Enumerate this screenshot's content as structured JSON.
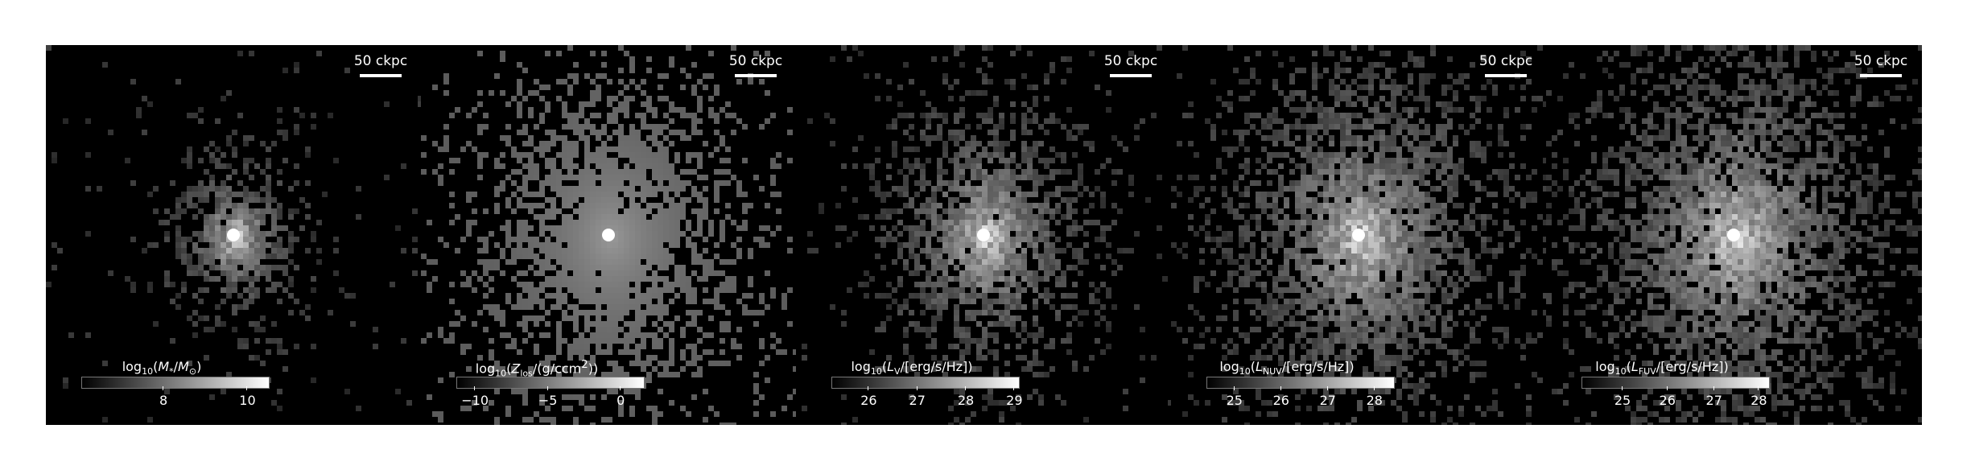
{
  "panels": [
    {
      "scalebar": "50 ckpc",
      "colorbar_label": "log10(M*/M⊙)",
      "ticks": [
        {
          "label": "8",
          "frac": 0.44
        },
        {
          "label": "10",
          "frac": 0.89
        }
      ]
    },
    {
      "scalebar": "50 ckpc",
      "colorbar_label": "log10(Zlos/(g/ccm²))",
      "ticks": [
        {
          "label": "−10",
          "frac": 0.1
        },
        {
          "label": "−5",
          "frac": 0.49
        },
        {
          "label": "0",
          "frac": 0.88
        }
      ]
    },
    {
      "scalebar": "50 ckpc",
      "colorbar_label": "log10(LV/[erg/s/Hz])",
      "ticks": [
        {
          "label": "26",
          "frac": 0.2
        },
        {
          "label": "27",
          "frac": 0.46
        },
        {
          "label": "28",
          "frac": 0.72
        },
        {
          "label": "29",
          "frac": 0.98
        }
      ]
    },
    {
      "scalebar": "50 ckpc",
      "colorbar_label": "log10(LNUV/[erg/s/Hz])",
      "ticks": [
        {
          "label": "25",
          "frac": 0.15
        },
        {
          "label": "26",
          "frac": 0.4
        },
        {
          "label": "27",
          "frac": 0.65
        },
        {
          "label": "28",
          "frac": 0.9
        }
      ]
    },
    {
      "scalebar": "50 ckpc",
      "colorbar_label": "log10(LFUV/[erg/s/Hz])",
      "ticks": [
        {
          "label": "25",
          "frac": 0.22
        },
        {
          "label": "26",
          "frac": 0.46
        },
        {
          "label": "27",
          "frac": 0.71
        },
        {
          "label": "28",
          "frac": 0.95
        }
      ]
    }
  ]
}
